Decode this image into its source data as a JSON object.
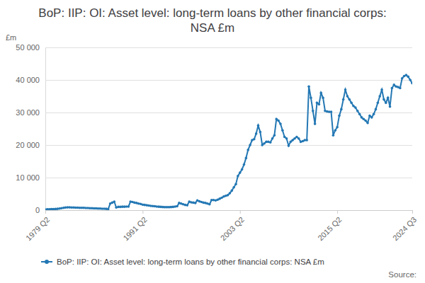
{
  "chart_data": {
    "type": "line",
    "title": "BoP: IIP: OI: Asset level: long-term loans by other financial corps: NSA £m",
    "y_label": "£m",
    "source": "Source:",
    "categories": [
      "1979 Q2",
      null,
      null,
      null,
      null,
      null,
      null,
      null,
      null,
      null,
      null,
      null,
      null,
      null,
      null,
      null,
      null,
      null,
      null,
      null,
      null,
      null,
      null,
      null,
      null,
      null,
      null,
      null,
      null,
      null,
      null,
      null,
      null,
      null,
      null,
      null,
      null,
      null,
      null,
      null,
      null,
      null,
      null,
      null,
      null,
      null,
      null,
      null,
      "1991 Q2",
      null,
      null,
      null,
      null,
      null,
      null,
      null,
      null,
      null,
      null,
      null,
      null,
      null,
      null,
      null,
      null,
      null,
      null,
      null,
      null,
      null,
      null,
      null,
      null,
      null,
      null,
      null,
      null,
      null,
      null,
      null,
      null,
      null,
      null,
      null,
      null,
      null,
      null,
      null,
      null,
      null,
      null,
      null,
      null,
      null,
      null,
      null,
      "2003 Q2",
      null,
      null,
      null,
      null,
      null,
      null,
      null,
      null,
      null,
      null,
      null,
      null,
      null,
      null,
      null,
      null,
      null,
      null,
      null,
      null,
      null,
      null,
      null,
      null,
      null,
      null,
      null,
      null,
      null,
      null,
      null,
      null,
      null,
      null,
      null,
      null,
      null,
      null,
      null,
      null,
      null,
      null,
      null,
      null,
      null,
      null,
      null,
      "2015 Q2",
      null,
      null,
      null,
      null,
      null,
      null,
      null,
      null,
      null,
      null,
      null,
      null,
      null,
      null,
      null,
      null,
      null,
      null,
      null,
      null,
      null,
      null,
      null,
      null,
      null,
      null,
      null,
      null,
      null,
      null,
      null,
      null,
      null,
      null,
      null,
      null,
      "2024 Q3"
    ],
    "series": [
      {
        "name": "BoP: IIP: OI: Asset level: long-term loans by other financial corps: NSA £m",
        "color": "#2478b4",
        "marker": "circle",
        "line_style": "solid",
        "values": [
          200,
          250,
          250,
          300,
          300,
          350,
          400,
          500,
          600,
          700,
          800,
          850,
          850,
          800,
          800,
          750,
          750,
          700,
          700,
          700,
          650,
          650,
          600,
          600,
          550,
          550,
          500,
          500,
          450,
          450,
          400,
          300,
          2000,
          2300,
          2600,
          800,
          1000,
          1000,
          1050,
          1050,
          1100,
          1100,
          2600,
          2500,
          2300,
          2200,
          2000,
          1900,
          1700,
          1600,
          1500,
          1400,
          1300,
          1250,
          1200,
          1100,
          1050,
          1000,
          950,
          900,
          900,
          900,
          950,
          1000,
          1100,
          1200,
          2200,
          2000,
          1800,
          1600,
          1500,
          2600,
          2400,
          2300,
          2200,
          3000,
          2700,
          2500,
          2300,
          2200,
          2000,
          1800,
          3100,
          3100,
          3000,
          3200,
          3500,
          3800,
          4200,
          4400,
          4600,
          5200,
          6000,
          7000,
          8000,
          10500,
          11500,
          12500,
          14000,
          16000,
          18500,
          20000,
          21500,
          21800,
          23500,
          26000,
          24000,
          20000,
          20500,
          21000,
          21000,
          20800,
          22000,
          23000,
          28000,
          27500,
          26500,
          24500,
          22500,
          22000,
          19800,
          21000,
          21500,
          22000,
          22500,
          22000,
          21000,
          21200,
          21500,
          21500,
          38000,
          34500,
          30500,
          26500,
          33000,
          32500,
          36000,
          34500,
          30500,
          30300,
          30200,
          30200,
          23000,
          24500,
          25500,
          29000,
          31000,
          34000,
          37000,
          35000,
          34000,
          33000,
          32000,
          31500,
          30500,
          29500,
          28500,
          28000,
          27500,
          26800,
          29000,
          28500,
          29500,
          31000,
          33000,
          35000,
          37000,
          34000,
          33000,
          34500,
          31800,
          37500,
          38500,
          38000,
          37800,
          37500,
          40500,
          41200,
          41500,
          41000,
          40000,
          39000
        ]
      }
    ],
    "ylim": [
      0,
      50000
    ],
    "yticks": [
      0,
      {
        "value": 10000,
        "label": "10 000"
      },
      {
        "value": 20000,
        "label": "20 000"
      },
      {
        "value": 30000,
        "label": "30 000"
      },
      {
        "value": 40000,
        "label": "40 000"
      },
      {
        "value": 50000,
        "label": "50 000"
      }
    ],
    "grid": true,
    "legend": "bottom"
  }
}
